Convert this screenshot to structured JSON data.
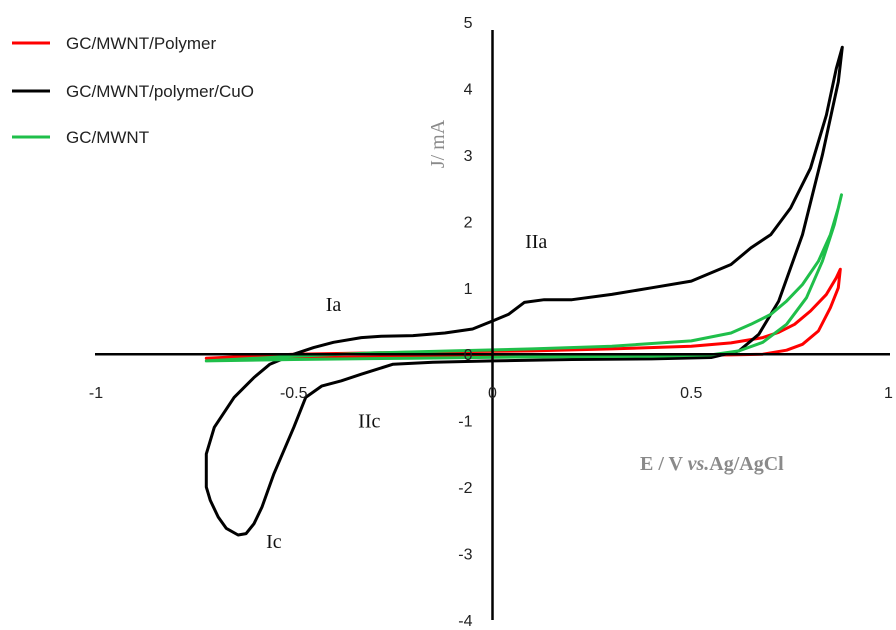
{
  "chart_data": {
    "type": "line",
    "xlabel": "E / V vs.Ag/AgCl",
    "xlabel_parts": [
      "E / V ",
      "vs.",
      "Ag/AgCl"
    ],
    "ylabel": "J/ mA",
    "xlim": [
      -1,
      1
    ],
    "ylim": [
      -4,
      5
    ],
    "x_ticks": [
      "-1",
      "-0.5",
      "0",
      "0.5",
      "1"
    ],
    "y_ticks": [
      "5",
      "4",
      "3",
      "2",
      "1",
      "0",
      "-1",
      "-2",
      "-3",
      "-4"
    ],
    "grid": false,
    "legend_position": "top-left",
    "series": [
      {
        "name": "GC/MWNT/Polymer",
        "color": "#ff0000",
        "points": [
          [
            -0.72,
            -0.06
          ],
          [
            -0.5,
            -0.05
          ],
          [
            -0.2,
            -0.04
          ],
          [
            0.1,
            -0.03
          ],
          [
            0.4,
            -0.02
          ],
          [
            0.6,
            -0.01
          ],
          [
            0.68,
            0.0
          ],
          [
            0.74,
            0.06
          ],
          [
            0.78,
            0.15
          ],
          [
            0.82,
            0.35
          ],
          [
            0.85,
            0.7
          ],
          [
            0.87,
            1.0
          ],
          [
            0.875,
            1.28
          ],
          [
            0.865,
            1.15
          ],
          [
            0.84,
            0.9
          ],
          [
            0.8,
            0.65
          ],
          [
            0.76,
            0.45
          ],
          [
            0.72,
            0.33
          ],
          [
            0.68,
            0.25
          ],
          [
            0.6,
            0.17
          ],
          [
            0.5,
            0.12
          ],
          [
            0.3,
            0.08
          ],
          [
            0.1,
            0.05
          ],
          [
            -0.1,
            0.04
          ],
          [
            -0.3,
            0.02
          ],
          [
            -0.5,
            0.0
          ],
          [
            -0.72,
            -0.06
          ]
        ]
      },
      {
        "name": "GC/MWNT/polymer/CuO",
        "color": "#000000",
        "points": [
          [
            -0.72,
            -1.8
          ],
          [
            -0.72,
            -2.0
          ],
          [
            -0.71,
            -2.2
          ],
          [
            -0.69,
            -2.45
          ],
          [
            -0.67,
            -2.62
          ],
          [
            -0.64,
            -2.72
          ],
          [
            -0.62,
            -2.7
          ],
          [
            -0.6,
            -2.55
          ],
          [
            -0.58,
            -2.3
          ],
          [
            -0.55,
            -1.8
          ],
          [
            -0.5,
            -1.1
          ],
          [
            -0.47,
            -0.65
          ],
          [
            -0.43,
            -0.48
          ],
          [
            -0.38,
            -0.4
          ],
          [
            -0.33,
            -0.3
          ],
          [
            -0.25,
            -0.15
          ],
          [
            -0.15,
            -0.12
          ],
          [
            0.0,
            -0.1
          ],
          [
            0.2,
            -0.08
          ],
          [
            0.4,
            -0.07
          ],
          [
            0.55,
            -0.05
          ],
          [
            0.62,
            0.05
          ],
          [
            0.67,
            0.3
          ],
          [
            0.72,
            0.8
          ],
          [
            0.78,
            1.8
          ],
          [
            0.83,
            3.0
          ],
          [
            0.87,
            4.1
          ],
          [
            0.88,
            4.62
          ],
          [
            0.865,
            4.3
          ],
          [
            0.84,
            3.6
          ],
          [
            0.8,
            2.8
          ],
          [
            0.75,
            2.2
          ],
          [
            0.7,
            1.8
          ],
          [
            0.65,
            1.6
          ],
          [
            0.6,
            1.35
          ],
          [
            0.5,
            1.1
          ],
          [
            0.4,
            1.0
          ],
          [
            0.3,
            0.9
          ],
          [
            0.2,
            0.82
          ],
          [
            0.13,
            0.82
          ],
          [
            0.08,
            0.78
          ],
          [
            0.04,
            0.6
          ],
          [
            0.0,
            0.5
          ],
          [
            -0.05,
            0.38
          ],
          [
            -0.12,
            0.32
          ],
          [
            -0.2,
            0.28
          ],
          [
            -0.28,
            0.27
          ],
          [
            -0.33,
            0.25
          ],
          [
            -0.4,
            0.18
          ],
          [
            -0.45,
            0.1
          ],
          [
            -0.5,
            0.0
          ],
          [
            -0.56,
            -0.15
          ],
          [
            -0.6,
            -0.35
          ],
          [
            -0.65,
            -0.65
          ],
          [
            -0.7,
            -1.1
          ],
          [
            -0.72,
            -1.5
          ],
          [
            -0.72,
            -1.8
          ]
        ]
      },
      {
        "name": "GC/MWNT",
        "color": "#1fbf4a",
        "points": [
          [
            -0.72,
            -0.1
          ],
          [
            -0.5,
            -0.08
          ],
          [
            -0.2,
            -0.06
          ],
          [
            0.1,
            -0.04
          ],
          [
            0.4,
            -0.03
          ],
          [
            0.55,
            -0.01
          ],
          [
            0.62,
            0.05
          ],
          [
            0.68,
            0.18
          ],
          [
            0.74,
            0.45
          ],
          [
            0.79,
            0.85
          ],
          [
            0.83,
            1.4
          ],
          [
            0.86,
            1.95
          ],
          [
            0.878,
            2.4
          ],
          [
            0.87,
            2.2
          ],
          [
            0.85,
            1.8
          ],
          [
            0.82,
            1.4
          ],
          [
            0.78,
            1.05
          ],
          [
            0.74,
            0.8
          ],
          [
            0.7,
            0.6
          ],
          [
            0.65,
            0.45
          ],
          [
            0.6,
            0.32
          ],
          [
            0.5,
            0.2
          ],
          [
            0.3,
            0.12
          ],
          [
            0.1,
            0.08
          ],
          [
            -0.1,
            0.05
          ],
          [
            -0.3,
            0.02
          ],
          [
            -0.5,
            -0.03
          ],
          [
            -0.72,
            -0.1
          ]
        ]
      }
    ],
    "annotations": [
      {
        "text": "Ia",
        "x": -0.4,
        "y": 0.65
      },
      {
        "text": "IIa",
        "x": 0.11,
        "y": 1.6
      },
      {
        "text": "IIc",
        "x": -0.31,
        "y": -1.1
      },
      {
        "text": "Ic",
        "x": -0.55,
        "y": -2.92
      }
    ]
  }
}
